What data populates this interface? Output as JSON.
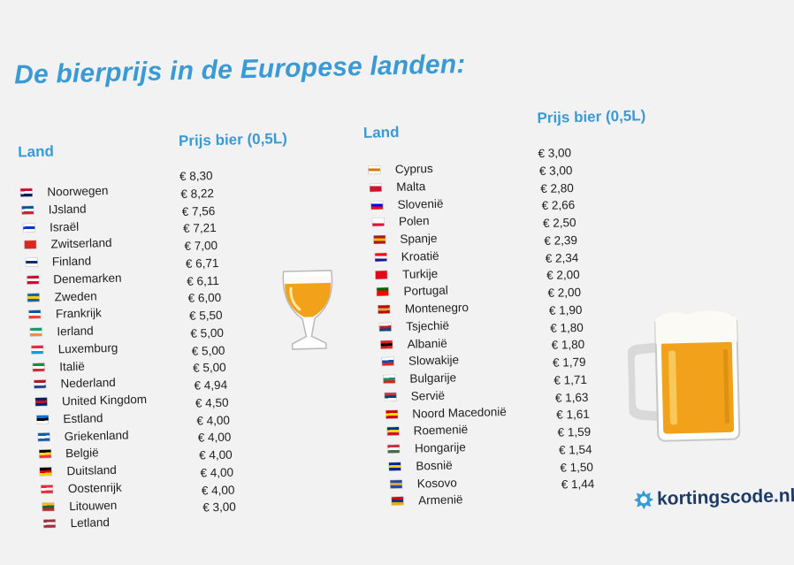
{
  "title": "De bierprijs in de Europese landen:",
  "left": {
    "header_country": "Land",
    "header_price": "Prijs bier (0,5L)",
    "rows": [
      {
        "country": "Noorwegen",
        "price": "€ 8,30",
        "flag": [
          "#c8102e",
          "#ffffff",
          "#00205b"
        ]
      },
      {
        "country": "IJsland",
        "price": "€ 8,22",
        "flag": [
          "#02529c",
          "#ffffff",
          "#dc1e35"
        ]
      },
      {
        "country": "Israël",
        "price": "€ 7,56",
        "flag": [
          "#ffffff",
          "#0038b8",
          "#ffffff"
        ]
      },
      {
        "country": "Zwitserland",
        "price": "€ 7,21",
        "flag": [
          "#da291c",
          "#da291c",
          "#da291c"
        ]
      },
      {
        "country": "Finland",
        "price": "€ 7,00",
        "flag": [
          "#ffffff",
          "#002f6c",
          "#ffffff"
        ]
      },
      {
        "country": "Denemarken",
        "price": "€ 6,71",
        "flag": [
          "#c60c30",
          "#ffffff",
          "#c60c30"
        ]
      },
      {
        "country": "Zweden",
        "price": "€ 6,11",
        "flag": [
          "#006aa7",
          "#fecc00",
          "#006aa7"
        ]
      },
      {
        "country": "Frankrijk",
        "price": "€ 6,00",
        "flag": [
          "#0055a4",
          "#ffffff",
          "#ef4135"
        ]
      },
      {
        "country": "Ierland",
        "price": "€ 5,50",
        "flag": [
          "#169b62",
          "#ffffff",
          "#ff883e"
        ]
      },
      {
        "country": "Luxemburg",
        "price": "€ 5,00",
        "flag": [
          "#ed2939",
          "#ffffff",
          "#00a1de"
        ]
      },
      {
        "country": "Italië",
        "price": "€ 5,00",
        "flag": [
          "#009246",
          "#ffffff",
          "#ce2b37"
        ]
      },
      {
        "country": "Nederland",
        "price": "€ 5,00",
        "flag": [
          "#ae1c28",
          "#ffffff",
          "#21468b"
        ]
      },
      {
        "country": "United Kingdom",
        "price": "€ 4,94",
        "flag": [
          "#012169",
          "#c8102e",
          "#012169"
        ]
      },
      {
        "country": "Estland",
        "price": "€ 4,50",
        "flag": [
          "#0072ce",
          "#000000",
          "#ffffff"
        ]
      },
      {
        "country": "Griekenland",
        "price": "€ 4,00",
        "flag": [
          "#0d5eaf",
          "#ffffff",
          "#0d5eaf"
        ]
      },
      {
        "country": "België",
        "price": "€ 4,00",
        "flag": [
          "#000000",
          "#fdda24",
          "#ef3340"
        ]
      },
      {
        "country": "Duitsland",
        "price": "€ 4,00",
        "flag": [
          "#000000",
          "#dd0000",
          "#ffce00"
        ]
      },
      {
        "country": "Oostenrijk",
        "price": "€ 4,00",
        "flag": [
          "#ed2939",
          "#ffffff",
          "#ed2939"
        ]
      },
      {
        "country": "Litouwen",
        "price": "€ 4,00",
        "flag": [
          "#fdb913",
          "#006a44",
          "#c1272d"
        ]
      },
      {
        "country": "Letland",
        "price": "€ 3,00",
        "flag": [
          "#9e3039",
          "#ffffff",
          "#9e3039"
        ]
      }
    ]
  },
  "right": {
    "header_country": "Land",
    "header_price": "Prijs bier (0,5L)",
    "rows": [
      {
        "country": "Cyprus",
        "price": "€ 3,00",
        "flag": [
          "#ffffff",
          "#d57800",
          "#ffffff"
        ]
      },
      {
        "country": "Malta",
        "price": "€ 3,00",
        "flag": [
          "#ffffff",
          "#cf142b",
          "#cf142b"
        ]
      },
      {
        "country": "Slovenië",
        "price": "€ 2,80",
        "flag": [
          "#ffffff",
          "#0000ff",
          "#ff0000"
        ]
      },
      {
        "country": "Polen",
        "price": "€ 2,66",
        "flag": [
          "#ffffff",
          "#ffffff",
          "#dc143c"
        ]
      },
      {
        "country": "Spanje",
        "price": "€ 2,50",
        "flag": [
          "#aa151b",
          "#f1bf00",
          "#aa151b"
        ]
      },
      {
        "country": "Kroatië",
        "price": "€ 2,39",
        "flag": [
          "#ff0000",
          "#ffffff",
          "#171796"
        ]
      },
      {
        "country": "Turkije",
        "price": "€ 2,34",
        "flag": [
          "#e30a17",
          "#e30a17",
          "#e30a17"
        ]
      },
      {
        "country": "Portugal",
        "price": "€ 2,00",
        "flag": [
          "#006600",
          "#ff0000",
          "#ff0000"
        ]
      },
      {
        "country": "Montenegro",
        "price": "€ 2,00",
        "flag": [
          "#c40308",
          "#d3ae3b",
          "#c40308"
        ]
      },
      {
        "country": "Tsjechië",
        "price": "€ 1,90",
        "flag": [
          "#ffffff",
          "#d7141a",
          "#11457e"
        ]
      },
      {
        "country": "Albanië",
        "price": "€ 1,80",
        "flag": [
          "#e41e20",
          "#000000",
          "#e41e20"
        ]
      },
      {
        "country": "Slowakije",
        "price": "€ 1,80",
        "flag": [
          "#ffffff",
          "#0b4ea2",
          "#ee1c25"
        ]
      },
      {
        "country": "Bulgarije",
        "price": "€ 1,79",
        "flag": [
          "#ffffff",
          "#00966e",
          "#d62612"
        ]
      },
      {
        "country": "Servië",
        "price": "€ 1,71",
        "flag": [
          "#c6363c",
          "#0c4076",
          "#ffffff"
        ]
      },
      {
        "country": "Noord Macedonië",
        "price": "€ 1,63",
        "flag": [
          "#d20000",
          "#ffe600",
          "#d20000"
        ]
      },
      {
        "country": "Roemenië",
        "price": "€ 1,61",
        "flag": [
          "#002b7f",
          "#fcd116",
          "#ce1126"
        ]
      },
      {
        "country": "Hongarije",
        "price": "€ 1,59",
        "flag": [
          "#cd2a3e",
          "#ffffff",
          "#436f4d"
        ]
      },
      {
        "country": "Bosnië",
        "price": "€ 1,54",
        "flag": [
          "#002395",
          "#fecb00",
          "#002395"
        ]
      },
      {
        "country": "Kosovo",
        "price": "€ 1,50",
        "flag": [
          "#244aa5",
          "#d0a650",
          "#244aa5"
        ]
      },
      {
        "country": "Armenië",
        "price": "€ 1,44",
        "flag": [
          "#d90012",
          "#0033a0",
          "#f2a800"
        ]
      }
    ]
  },
  "logo": {
    "text": "kortingscode.nl",
    "icon": "gear-star-icon",
    "color": "#1e3b66",
    "icon_color": "#3a9ad3"
  },
  "colors": {
    "title": "#3a9ad3",
    "text": "#1d1d1d",
    "background": "#f2f2f3",
    "beer": "#f1a21a",
    "foam": "#fbfaf4"
  }
}
